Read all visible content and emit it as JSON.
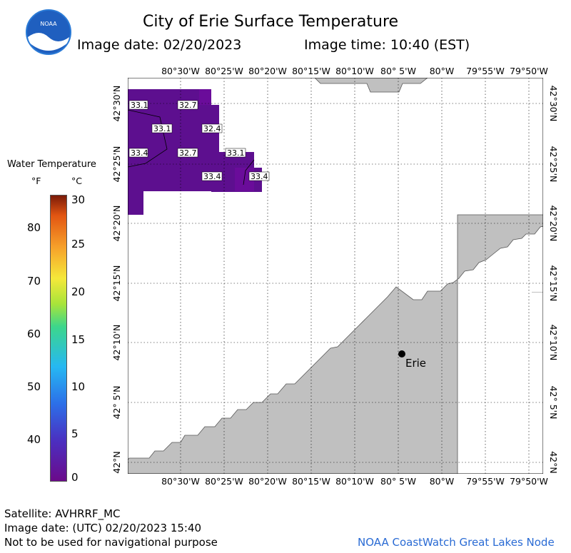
{
  "header": {
    "title": "City of Erie Surface Temperature",
    "image_date_label": "Image date: 02/20/2023",
    "image_time_label": "Image time: 10:40 (EST)"
  },
  "logo": {
    "text": "NOAA"
  },
  "legend": {
    "title": "Water Temperature",
    "unit_f": "°F",
    "unit_c": "°C",
    "f_ticks": [
      "80",
      "70",
      "60",
      "50",
      "40"
    ],
    "c_ticks": [
      "30",
      "25",
      "20",
      "15",
      "10",
      "5",
      "0"
    ]
  },
  "map": {
    "lon_labels": [
      "80°30'W",
      "80°25'W",
      "80°20'W",
      "80°15'W",
      "80°10'W",
      "80° 5'W",
      "80°W",
      "79°55'W",
      "79°50'W"
    ],
    "lat_labels": [
      "42°30'N",
      "42°25'N",
      "42°20'N",
      "42°15'N",
      "42°10'N",
      "42° 5'N",
      "42°N"
    ],
    "temperature_labels": [
      "33.1",
      "32.7",
      "33.1",
      "32.4",
      "33.4",
      "32.7",
      "33.1",
      "33.4",
      "33.4"
    ],
    "city_label": "Erie",
    "colors": {
      "land": "#c0c0c0",
      "water_cold": "#5d0f8f",
      "water_cold2": "#6a0c9a"
    }
  },
  "footer": {
    "satellite": "Satellite: AVHRRF_MC",
    "utc_date": "Image date: (UTC) 02/20/2023  15:40",
    "disclaimer": "Not to be used for navigational purpose",
    "source": "NOAA CoastWatch Great Lakes Node",
    "source_color": "#2a6bd4"
  }
}
